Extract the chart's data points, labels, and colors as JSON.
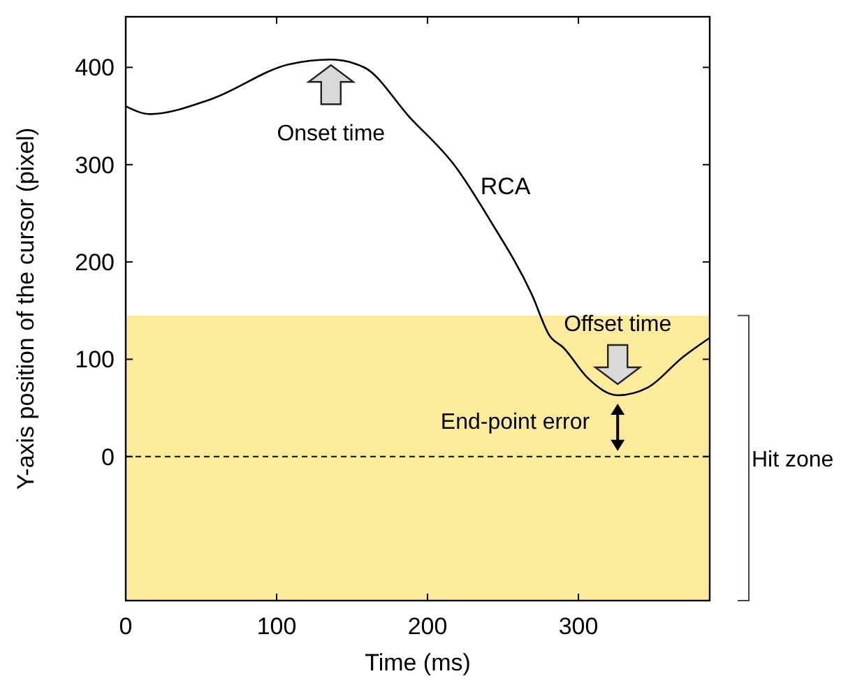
{
  "chart_data": {
    "type": "line",
    "xlabel": "Time (ms)",
    "ylabel": "Y-axis position of the cursor (pixel)",
    "xlim": [
      0,
      387
    ],
    "ylim": [
      -148,
      452
    ],
    "xticks": [
      0,
      100,
      200,
      300
    ],
    "yticks": [
      0,
      100,
      200,
      300,
      400
    ],
    "grid": false,
    "line_style": "solid",
    "marker": "none",
    "series": [
      {
        "name": "RCA",
        "color": "#000000",
        "x": [
          0,
          16,
          56,
          108,
          136,
          158,
          188,
          219,
          241,
          269,
          281,
          290,
          306,
          326,
          346,
          369,
          387
        ],
        "values": [
          360,
          352,
          367,
          403,
          408,
          400,
          349,
          297,
          244,
          167,
          124,
          112,
          81,
          63,
          71,
          102,
          122
        ]
      }
    ],
    "ref_lines": [
      {
        "axis": "y",
        "value": 0,
        "color": "#000000",
        "line_style": "dashed"
      }
    ],
    "bands": [
      {
        "axis": "y",
        "from": -148,
        "to": 145,
        "label": "Hit zone",
        "color": "#fdeb9c"
      }
    ],
    "annotations": [
      "Onset time",
      "Offset time",
      "End-point error"
    ]
  }
}
